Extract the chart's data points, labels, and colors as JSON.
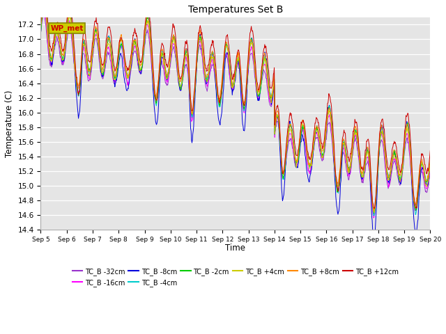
{
  "title": "Temperatures Set B",
  "xlabel": "Time",
  "ylabel": "Temperature (C)",
  "ylim": [
    14.4,
    17.3
  ],
  "bg_color": "#e5e5e5",
  "series": [
    {
      "label": "TC_B -32cm",
      "color": "#9933cc"
    },
    {
      "label": "TC_B -16cm",
      "color": "#ff00ff"
    },
    {
      "label": "TC_B -8cm",
      "color": "#0000dd"
    },
    {
      "label": "TC_B -4cm",
      "color": "#00cccc"
    },
    {
      "label": "TC_B -2cm",
      "color": "#00cc00"
    },
    {
      "label": "TC_B +4cm",
      "color": "#cccc00"
    },
    {
      "label": "TC_B +8cm",
      "color": "#ff8800"
    },
    {
      "label": "TC_B +12cm",
      "color": "#cc0000"
    }
  ],
  "wp_met_box_facecolor": "#cccc00",
  "wp_met_text_color": "#cc0000",
  "wp_met_edge_color": "#888800",
  "grid_color": "#ffffff",
  "x_tick_labels": [
    "Sep 5",
    "Sep 6",
    "Sep 7",
    "Sep 8",
    "Sep 9",
    "Sep 10",
    "Sep 11",
    "Sep 12",
    "Sep 13",
    "Sep 14",
    "Sep 15",
    "Sep 16",
    "Sep 17",
    "Sep 18",
    "Sep 19",
    "Sep 20"
  ],
  "n_points": 900
}
